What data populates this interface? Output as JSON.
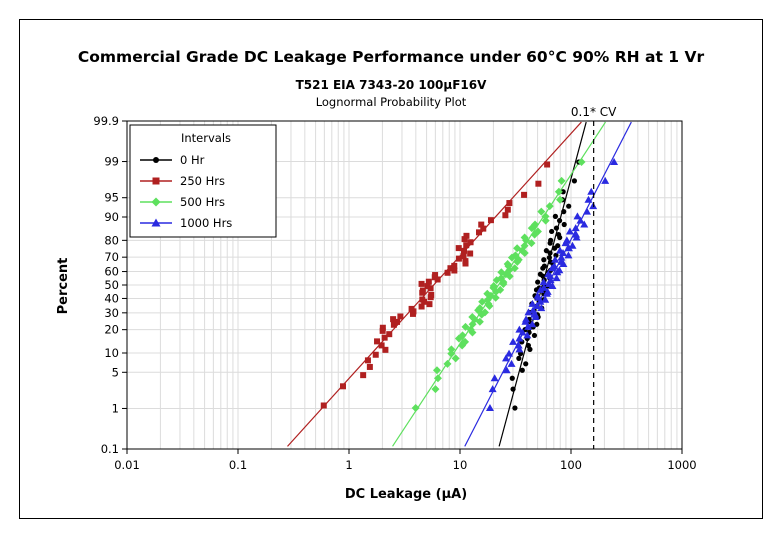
{
  "chart_data": {
    "type": "scatter",
    "title": "Commercial Grade DC Leakage Performance under 60°C 90% RH at 1 Vr",
    "subtitle": "T521 EIA 7343-20 100µF16V",
    "subtitle2": "Lognormal Probability Plot",
    "xlabel": "DC Leakage (µA)",
    "ylabel": "Percent",
    "xscale": "log",
    "yscale": "lognormal-probability",
    "xlim": [
      0.01,
      1000
    ],
    "ylim": [
      0.1,
      99.9
    ],
    "xticks": [
      0.01,
      0.1,
      1,
      10,
      100,
      1000
    ],
    "xtick_labels": [
      "0.01",
      "0.1",
      "1",
      "10",
      "100",
      "1000"
    ],
    "yticks": [
      0.1,
      1,
      5,
      10,
      20,
      30,
      40,
      50,
      60,
      70,
      80,
      90,
      95,
      99,
      99.9
    ],
    "ytick_labels": [
      "0.1",
      "1",
      "5",
      "10",
      "20",
      "30",
      "40",
      "50",
      "60",
      "70",
      "80",
      "90",
      "95",
      "99",
      "99.9"
    ],
    "grid": true,
    "legend": {
      "title": "Intervals",
      "position": "top-left"
    },
    "reference_line": {
      "x": 160,
      "label": "0.1* CV"
    },
    "series": [
      {
        "name": "0 Hr",
        "color": "#000000",
        "marker": "circle",
        "fit": [
          23,
          133
        ]
      },
      {
        "name": "250 Hrs",
        "color": "#b02020",
        "marker": "square",
        "fit": [
          0.3,
          112
        ]
      },
      {
        "name": "500 Hrs",
        "color": "#5ee05e",
        "marker": "diamond",
        "fit": [
          2.6,
          190
        ]
      },
      {
        "name": "1000 Hrs",
        "color": "#2a2ae0",
        "marker": "triangle",
        "fit": [
          11.5,
          330
        ]
      }
    ]
  }
}
